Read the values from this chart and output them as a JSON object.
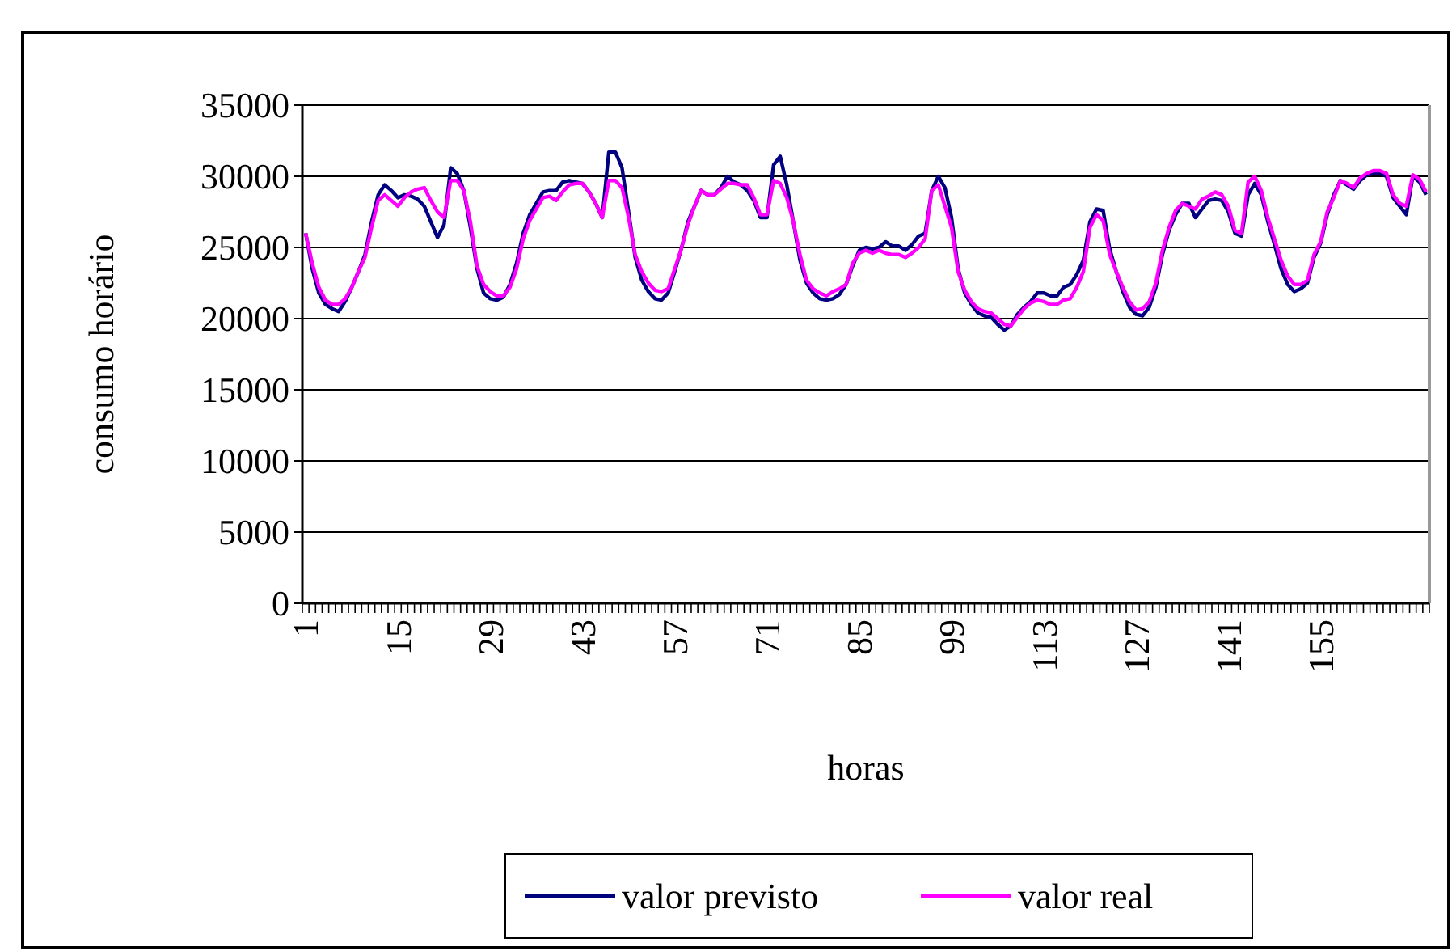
{
  "chart_data": {
    "type": "line",
    "xlabel": "horas",
    "ylabel": "consumo horário",
    "categories": [
      "1",
      null,
      null,
      null,
      null,
      null,
      null,
      null,
      null,
      null,
      null,
      null,
      null,
      null,
      "15",
      null,
      null,
      null,
      null,
      null,
      null,
      null,
      null,
      null,
      null,
      null,
      null,
      null,
      "29",
      null,
      null,
      null,
      null,
      null,
      null,
      null,
      null,
      null,
      null,
      null,
      null,
      null,
      "43",
      null,
      null,
      null,
      null,
      null,
      null,
      null,
      null,
      null,
      null,
      null,
      null,
      null,
      "57",
      null,
      null,
      null,
      null,
      null,
      null,
      null,
      null,
      null,
      null,
      null,
      null,
      null,
      "71",
      null,
      null,
      null,
      null,
      null,
      null,
      null,
      null,
      null,
      null,
      null,
      null,
      null,
      "85",
      null,
      null,
      null,
      null,
      null,
      null,
      null,
      null,
      null,
      null,
      null,
      null,
      null,
      "99",
      null,
      null,
      null,
      null,
      null,
      null,
      null,
      null,
      null,
      null,
      null,
      null,
      null,
      "113",
      null,
      null,
      null,
      null,
      null,
      null,
      null,
      null,
      null,
      null,
      null,
      null,
      null,
      "127",
      null,
      null,
      null,
      null,
      null,
      null,
      null,
      null,
      null,
      null,
      null,
      null,
      null,
      "141",
      null,
      null,
      null,
      null,
      null,
      null,
      null,
      null,
      null,
      null,
      null,
      null,
      null,
      "155",
      null,
      null,
      null,
      null,
      null,
      null,
      null,
      null,
      null,
      null,
      null,
      null,
      null,
      null,
      null,
      null
    ],
    "series": [
      {
        "name": "valor previsto",
        "color": "#000080",
        "values": [
          26000,
          23500,
          21800,
          21000,
          20700,
          20500,
          21200,
          22200,
          23300,
          24500,
          26800,
          28700,
          29400,
          29000,
          28500,
          28700,
          28600,
          28400,
          27900,
          26800,
          25700,
          26600,
          30600,
          30200,
          29000,
          26400,
          23500,
          21800,
          21400,
          21300,
          21500,
          22400,
          23900,
          26000,
          27300,
          28100,
          28900,
          29000,
          29000,
          29600,
          29700,
          29600,
          29500,
          28900,
          28100,
          27100,
          31700,
          31700,
          30600,
          27500,
          24300,
          22700,
          21900,
          21400,
          21300,
          21800,
          23300,
          24900,
          26800,
          27900,
          29000,
          28700,
          28700,
          29200,
          30000,
          29600,
          29400,
          29000,
          28300,
          27100,
          27100,
          30800,
          31400,
          29400,
          26800,
          24100,
          22500,
          21800,
          21400,
          21300,
          21400,
          21700,
          22400,
          23700,
          24800,
          25000,
          24900,
          25000,
          25400,
          25100,
          25100,
          24800,
          25200,
          25800,
          26000,
          29000,
          30000,
          29200,
          27100,
          23500,
          21800,
          21000,
          20400,
          20200,
          20100,
          19600,
          19200,
          19500,
          20300,
          20800,
          21200,
          21800,
          21800,
          21600,
          21600,
          22200,
          22400,
          23100,
          24100,
          26800,
          27700,
          27600,
          24900,
          23300,
          21900,
          20800,
          20300,
          20200,
          20800,
          22200,
          24500,
          26200,
          27300,
          28100,
          28100,
          27100,
          27700,
          28300,
          28400,
          28300,
          27500,
          26000,
          25800,
          28700,
          29500,
          28700,
          26800,
          25200,
          23500,
          22400,
          21900,
          22100,
          22500,
          24300,
          25300,
          27300,
          28700,
          29700,
          29400,
          29100,
          29700,
          30100,
          30200,
          30200,
          30000,
          28500,
          27900,
          27300,
          30000,
          29600,
          28700
        ]
      },
      {
        "name": "valor real",
        "color": "#ff00ff",
        "values": [
          26000,
          23900,
          22200,
          21300,
          21000,
          21000,
          21400,
          22200,
          23300,
          24300,
          26400,
          28300,
          28700,
          28300,
          27900,
          28500,
          28900,
          29100,
          29200,
          28300,
          27500,
          27100,
          29700,
          29700,
          29000,
          26800,
          23700,
          22400,
          21900,
          21600,
          21600,
          22200,
          23500,
          25600,
          26900,
          27700,
          28500,
          28600,
          28300,
          28900,
          29400,
          29500,
          29500,
          28900,
          28100,
          27100,
          29700,
          29700,
          29200,
          27100,
          24500,
          23300,
          22500,
          22000,
          21900,
          22100,
          23500,
          24900,
          26600,
          27900,
          29000,
          28700,
          28700,
          29100,
          29500,
          29500,
          29400,
          29400,
          28500,
          27300,
          27300,
          29700,
          29500,
          28500,
          26800,
          24500,
          22700,
          22100,
          21800,
          21600,
          21900,
          22100,
          22400,
          23900,
          24600,
          24800,
          24600,
          24800,
          24600,
          24500,
          24500,
          24300,
          24600,
          25000,
          25600,
          29000,
          29400,
          27900,
          26400,
          23300,
          22000,
          21200,
          20700,
          20500,
          20400,
          20000,
          19600,
          19500,
          20100,
          20700,
          21100,
          21300,
          21200,
          21000,
          21000,
          21300,
          21400,
          22200,
          23300,
          26400,
          27300,
          26900,
          24500,
          23300,
          22200,
          21200,
          20600,
          20700,
          21200,
          22500,
          24800,
          26400,
          27600,
          28100,
          27900,
          27700,
          28400,
          28600,
          28900,
          28700,
          27900,
          26200,
          26000,
          29600,
          30000,
          29000,
          27100,
          25600,
          24100,
          23000,
          22400,
          22400,
          22700,
          24500,
          25400,
          27500,
          28500,
          29700,
          29500,
          29200,
          29900,
          30200,
          30400,
          30400,
          30200,
          28700,
          28100,
          27900,
          30100,
          29800,
          28900
        ]
      }
    ],
    "ylim": [
      0,
      35000
    ],
    "yticks": [
      0,
      5000,
      10000,
      15000,
      20000,
      25000,
      30000,
      35000
    ],
    "grid": "y",
    "legend": "bottom",
    "marker": "none",
    "line_style": "solid"
  }
}
